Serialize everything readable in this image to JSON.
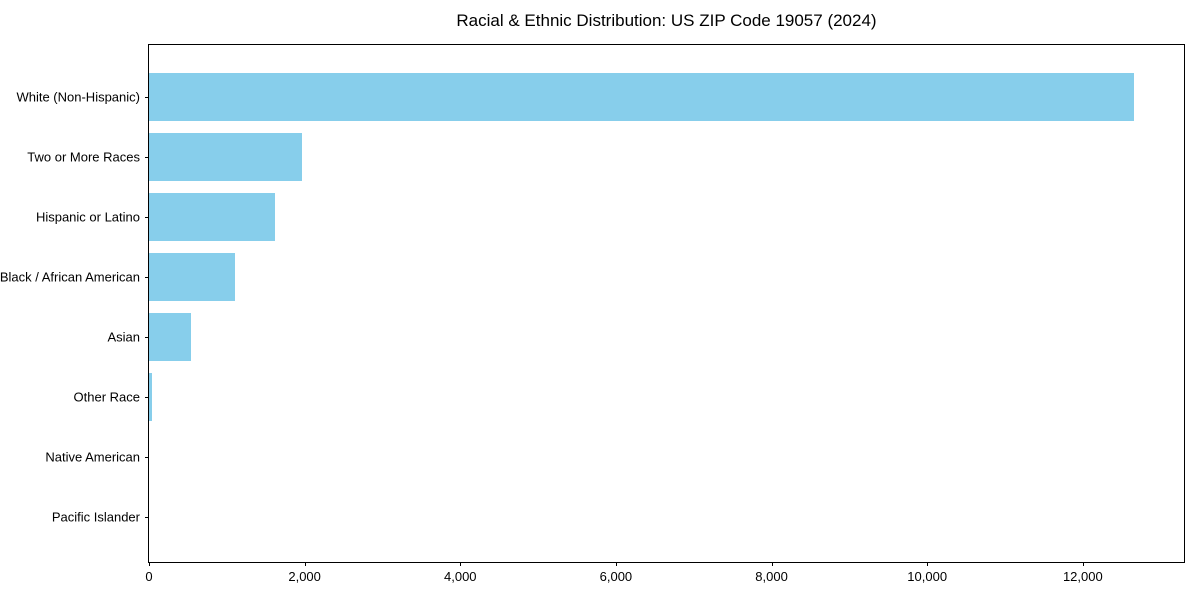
{
  "chart_data": {
    "type": "bar",
    "orientation": "horizontal",
    "title": "Racial & Ethnic Distribution: US ZIP Code 19057 (2024)",
    "categories": [
      "White (Non-Hispanic)",
      "Two or More Races",
      "Hispanic or Latino",
      "Black / African American",
      "Asian",
      "Other Race",
      "Native American",
      "Pacific Islander"
    ],
    "values": [
      12660,
      1970,
      1615,
      1100,
      540,
      40,
      0,
      0
    ],
    "xlabel": "",
    "ylabel": "",
    "xlim": [
      0,
      13300
    ],
    "x_ticks": [
      0,
      2000,
      4000,
      6000,
      8000,
      10000,
      12000
    ],
    "x_tick_labels": [
      "0",
      "2,000",
      "4,000",
      "6,000",
      "8,000",
      "10,000",
      "12,000"
    ],
    "bar_color": "#87CEEB",
    "frame_color": "#000000",
    "background_color": "#ffffff",
    "grid": false,
    "legend": null
  }
}
